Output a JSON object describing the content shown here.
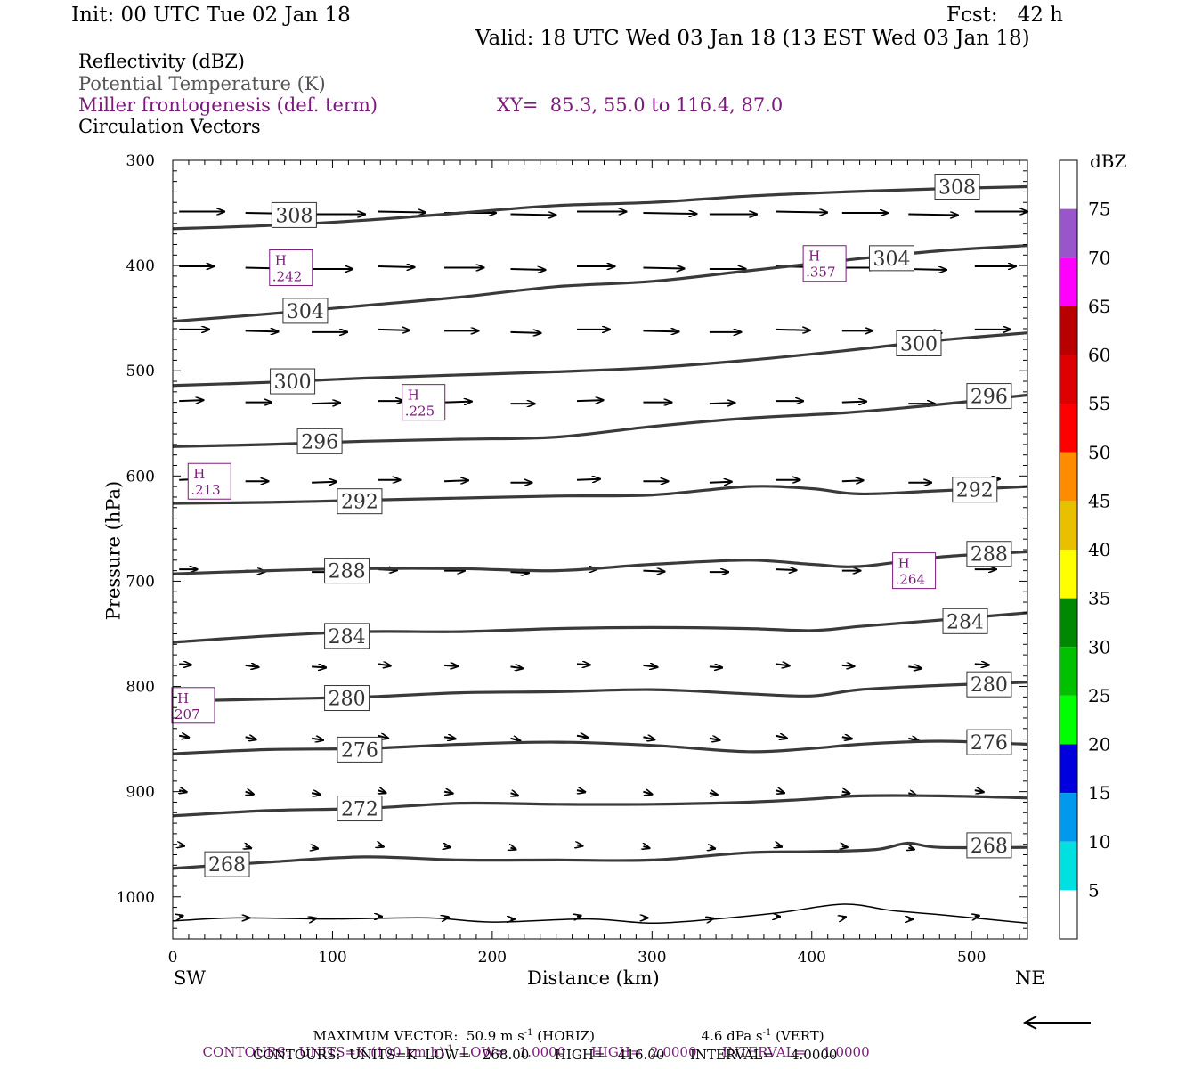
{
  "header": {
    "init": "Init: 00 UTC Tue 02 Jan 18",
    "fcst": "Fcst:   42 h",
    "valid": "Valid: 18 UTC Wed 03 Jan 18 (13 EST Wed 03 Jan 18)",
    "field1": "Reflectivity (dBZ)",
    "field2": "Potential Temperature (K)",
    "field3": "Miller frontogenesis (def. term)",
    "xy": "XY=  85.3, 55.0 to 116.4, 87.0",
    "field4": "Circulation Vectors"
  },
  "colors": {
    "theta": "#3a3a3a",
    "fronto": "#7a1a7a",
    "vector": "#000000"
  },
  "chart_data": {
    "type": "cross-section",
    "xlabel": "Distance (km)",
    "ylabel": "Pressure (hPa)",
    "xlim": [
      0,
      535
    ],
    "ylim": [
      300,
      1040
    ],
    "x_ticks": [
      0,
      100,
      200,
      300,
      400,
      500
    ],
    "y_ticks": [
      300,
      400,
      500,
      600,
      700,
      800,
      900,
      1000
    ],
    "x_end_labels": {
      "left": "SW",
      "right": "NE"
    },
    "colorbar": {
      "title": "dBZ",
      "levels": [
        "5",
        "10",
        "15",
        "20",
        "25",
        "30",
        "35",
        "40",
        "45",
        "50",
        "55",
        "60",
        "65",
        "70",
        "75"
      ],
      "colors": [
        "#ffffff",
        "#00e0e0",
        "#0099ee",
        "#0000dd",
        "#00ff00",
        "#00c000",
        "#008800",
        "#ffff00",
        "#e8c000",
        "#ff8c00",
        "#ff0000",
        "#dd0000",
        "#b80000",
        "#ff00ff",
        "#9955cc",
        "#ffffff"
      ]
    },
    "theta_contours": [
      {
        "level": "308",
        "points": [
          [
            0,
            365
          ],
          [
            60,
            362
          ],
          [
            120,
            357
          ],
          [
            180,
            350
          ],
          [
            240,
            343
          ],
          [
            300,
            340
          ],
          [
            360,
            334
          ],
          [
            420,
            330
          ],
          [
            480,
            327
          ],
          [
            535,
            325
          ]
        ],
        "labels": [
          [
            76,
            352
          ],
          [
            491,
            325
          ]
        ]
      },
      {
        "level": "304",
        "points": [
          [
            0,
            453
          ],
          [
            60,
            446
          ],
          [
            120,
            438
          ],
          [
            180,
            430
          ],
          [
            240,
            420
          ],
          [
            300,
            415
          ],
          [
            360,
            405
          ],
          [
            420,
            395
          ],
          [
            480,
            386
          ],
          [
            535,
            381
          ]
        ],
        "labels": [
          [
            83,
            443
          ],
          [
            450,
            393
          ]
        ]
      },
      {
        "level": "300",
        "points": [
          [
            0,
            514
          ],
          [
            60,
            511
          ],
          [
            120,
            507
          ],
          [
            180,
            504
          ],
          [
            240,
            501
          ],
          [
            300,
            497
          ],
          [
            360,
            490
          ],
          [
            420,
            481
          ],
          [
            480,
            471
          ],
          [
            535,
            464
          ]
        ],
        "labels": [
          [
            75,
            510
          ],
          [
            467,
            474
          ]
        ]
      },
      {
        "level": "296",
        "points": [
          [
            0,
            572
          ],
          [
            60,
            570
          ],
          [
            120,
            567
          ],
          [
            180,
            565
          ],
          [
            240,
            563
          ],
          [
            300,
            553
          ],
          [
            360,
            545
          ],
          [
            420,
            540
          ],
          [
            480,
            532
          ],
          [
            535,
            523
          ]
        ],
        "labels": [
          [
            92,
            567
          ],
          [
            511,
            524
          ]
        ]
      },
      {
        "level": "292",
        "points": [
          [
            0,
            626
          ],
          [
            60,
            625
          ],
          [
            120,
            623
          ],
          [
            180,
            621
          ],
          [
            240,
            619
          ],
          [
            300,
            618
          ],
          [
            360,
            610
          ],
          [
            400,
            612
          ],
          [
            430,
            617
          ],
          [
            480,
            614
          ],
          [
            535,
            610
          ]
        ],
        "labels": [
          [
            117,
            624
          ],
          [
            502,
            613
          ]
        ]
      },
      {
        "level": "288",
        "points": [
          [
            0,
            693
          ],
          [
            60,
            690
          ],
          [
            120,
            688
          ],
          [
            180,
            688
          ],
          [
            240,
            690
          ],
          [
            300,
            684
          ],
          [
            360,
            680
          ],
          [
            400,
            684
          ],
          [
            430,
            686
          ],
          [
            480,
            677
          ],
          [
            535,
            672
          ]
        ],
        "labels": [
          [
            109,
            690
          ],
          [
            511,
            674
          ]
        ]
      },
      {
        "level": "284",
        "points": [
          [
            0,
            758
          ],
          [
            60,
            752
          ],
          [
            120,
            748
          ],
          [
            180,
            748
          ],
          [
            240,
            745
          ],
          [
            300,
            744
          ],
          [
            360,
            745
          ],
          [
            400,
            747
          ],
          [
            430,
            743
          ],
          [
            480,
            737
          ],
          [
            535,
            730
          ]
        ],
        "labels": [
          [
            109,
            752
          ],
          [
            496,
            738
          ]
        ]
      },
      {
        "level": "280",
        "points": [
          [
            0,
            814
          ],
          [
            60,
            812
          ],
          [
            120,
            810
          ],
          [
            180,
            806
          ],
          [
            240,
            805
          ],
          [
            300,
            803
          ],
          [
            360,
            807
          ],
          [
            400,
            809
          ],
          [
            430,
            803
          ],
          [
            480,
            799
          ],
          [
            535,
            796
          ]
        ],
        "labels": [
          [
            109,
            811
          ],
          [
            511,
            798
          ]
        ]
      },
      {
        "level": "276",
        "points": [
          [
            0,
            864
          ],
          [
            60,
            860
          ],
          [
            120,
            859
          ],
          [
            180,
            855
          ],
          [
            240,
            853
          ],
          [
            300,
            856
          ],
          [
            360,
            862
          ],
          [
            400,
            859
          ],
          [
            430,
            855
          ],
          [
            480,
            852
          ],
          [
            535,
            855
          ]
        ],
        "labels": [
          [
            117,
            860
          ],
          [
            511,
            853
          ]
        ]
      },
      {
        "level": "272",
        "points": [
          [
            0,
            923
          ],
          [
            60,
            918
          ],
          [
            120,
            916
          ],
          [
            180,
            911
          ],
          [
            240,
            912
          ],
          [
            300,
            912
          ],
          [
            360,
            910
          ],
          [
            400,
            907
          ],
          [
            430,
            904
          ],
          [
            480,
            904
          ],
          [
            535,
            906
          ]
        ],
        "labels": [
          [
            117,
            916
          ],
          null
        ]
      },
      {
        "level": "268",
        "points": [
          [
            0,
            973
          ],
          [
            60,
            967
          ],
          [
            120,
            962
          ],
          [
            180,
            965
          ],
          [
            240,
            965
          ],
          [
            300,
            965
          ],
          [
            360,
            958
          ],
          [
            400,
            957
          ],
          [
            440,
            955
          ],
          [
            460,
            949
          ],
          [
            480,
            953
          ],
          [
            535,
            953
          ]
        ],
        "labels": [
          [
            34,
            969
          ],
          [
            511,
            951
          ]
        ]
      }
    ],
    "theta_lowest_contour": [
      [
        0,
        1023
      ],
      [
        40,
        1020
      ],
      [
        100,
        1021
      ],
      [
        160,
        1020
      ],
      [
        200,
        1024
      ],
      [
        260,
        1021
      ],
      [
        300,
        1025
      ],
      [
        340,
        1021
      ],
      [
        380,
        1015
      ],
      [
        420,
        1007
      ],
      [
        450,
        1013
      ],
      [
        480,
        1017
      ],
      [
        535,
        1025
      ]
    ],
    "fronto_highs": [
      {
        "label": "H",
        "value": ".242",
        "x": 74,
        "p": 402
      },
      {
        "label": "H",
        "value": ".357",
        "x": 408,
        "p": 398
      },
      {
        "label": "H",
        "value": ".225",
        "x": 157,
        "p": 530
      },
      {
        "label": "H",
        "value": ".213",
        "x": 23,
        "p": 605
      },
      {
        "label": "H",
        "value": ".264",
        "x": 464,
        "p": 690
      },
      {
        "label": "H",
        "value": "207",
        "x": 5,
        "p": 818
      }
    ],
    "footer": {
      "max_vector": "MAXIMUM VECTOR:  50.9 m s",
      "max_vector_sup": "-1",
      "horiz": " (HORIZ)",
      "vert_val": "4.6 dPa s",
      "vert_sup": "-1",
      "vert": " (VERT)",
      "contours1": "CONTOURS:  UNITS=K (100 km h)",
      "contours1_sup": "-1",
      "contours1_rest": "  LOW=   1.0000      HIGH=  2.0000      INTERVAL=    1.0000",
      "contours2": "CONTOURS:  UNITS=K  LOW=   268.00      HIGH=   416.00      INTERVAL=    4.0000"
    }
  }
}
